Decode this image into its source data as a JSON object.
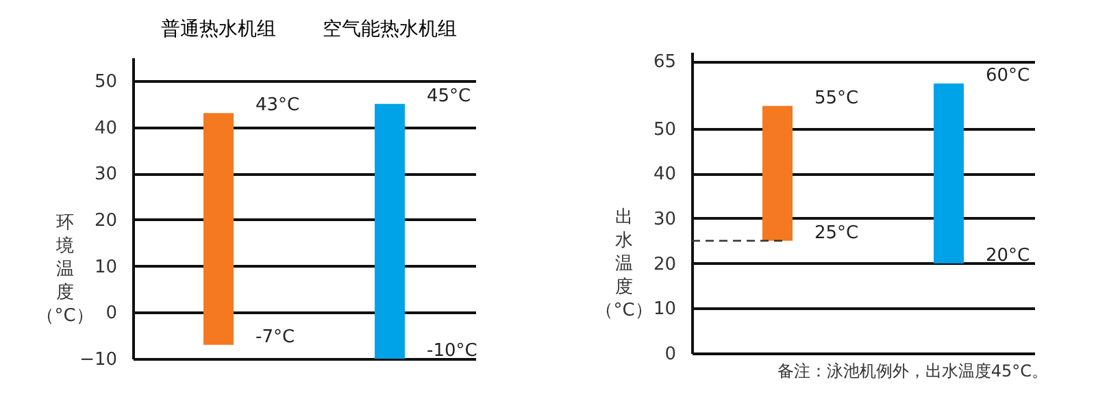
{
  "chart_data": [
    {
      "type": "bar",
      "ylabel": "环境温度（°C）",
      "categories": [
        "普通热水机组",
        "空气能热水机组"
      ],
      "grid": "y",
      "values": [
        50,
        55
      ],
      "base": [
        -7,
        -10
      ],
      "colors": [
        "#f47920",
        "#00a3e8"
      ],
      "ylim": [
        -10,
        55
      ],
      "yticks": [
        -10,
        0,
        10,
        20,
        30,
        40,
        50
      ],
      "annotations": [
        "43°C",
        "-7°C",
        "45°C",
        "-10°C"
      ]
    },
    {
      "type": "bar",
      "ylabel": "出水温度（°C）",
      "categories": [
        null,
        null
      ],
      "tick_labels": "y",
      "grid": "y",
      "values": [
        30,
        40
      ],
      "base": [
        25,
        20
      ],
      "colors": [
        "#f47920",
        "#00a3e8"
      ],
      "ylim": [
        0,
        67
      ],
      "yticks": [
        0,
        10,
        20,
        30,
        40,
        50,
        65
      ],
      "ref_lines": [
        {
          "axis": "y",
          "value": 25,
          "color": "#333333",
          "line_style": "dashed"
        }
      ],
      "annotations": [
        "55°C",
        "25°C",
        "60°C",
        "20°C",
        "备注：泳池机例外，出水温度45°C。"
      ]
    }
  ]
}
